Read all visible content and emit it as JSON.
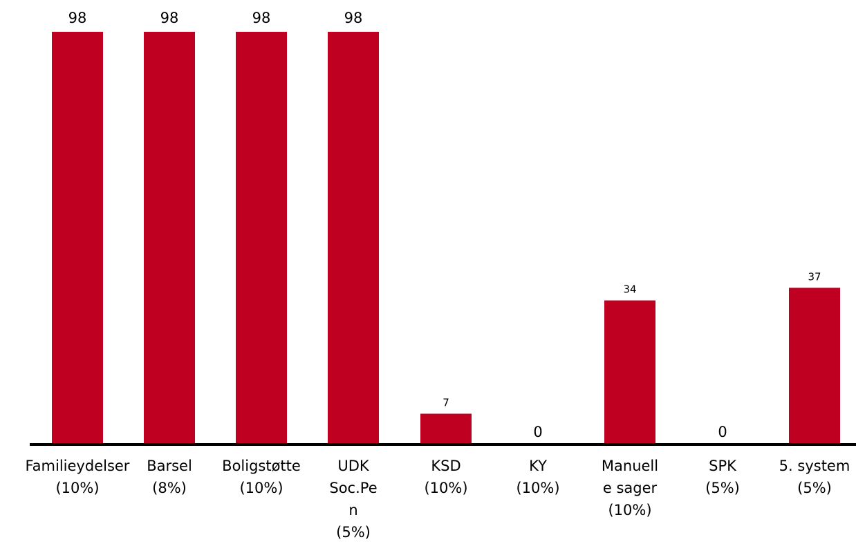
{
  "chart_data": {
    "type": "bar",
    "title": "",
    "xlabel": "",
    "ylabel": "",
    "ylim": [
      0,
      98
    ],
    "grid": false,
    "legend": "none",
    "bar_color": "#bf0020",
    "categories": [
      [
        "Familieydelser",
        "(10%)"
      ],
      [
        "Barsel",
        "(8%)"
      ],
      [
        "Boligstøtte",
        "(10%)"
      ],
      [
        "UDK",
        "Soc.Pe",
        "n",
        "(5%)"
      ],
      [
        "KSD",
        "(10%)"
      ],
      [
        "KY",
        "(10%)"
      ],
      [
        "Manuell",
        "e sager",
        "(10%)"
      ],
      [
        "SPK",
        "(5%)"
      ],
      [
        "5. system",
        "(5%)"
      ]
    ],
    "series": [
      {
        "values": [
          98,
          98,
          98,
          98,
          7,
          0,
          34,
          0,
          37
        ],
        "value_labels": [
          "98",
          "98",
          "98",
          "98",
          "7",
          "0",
          "34",
          "0",
          "37"
        ]
      }
    ]
  }
}
